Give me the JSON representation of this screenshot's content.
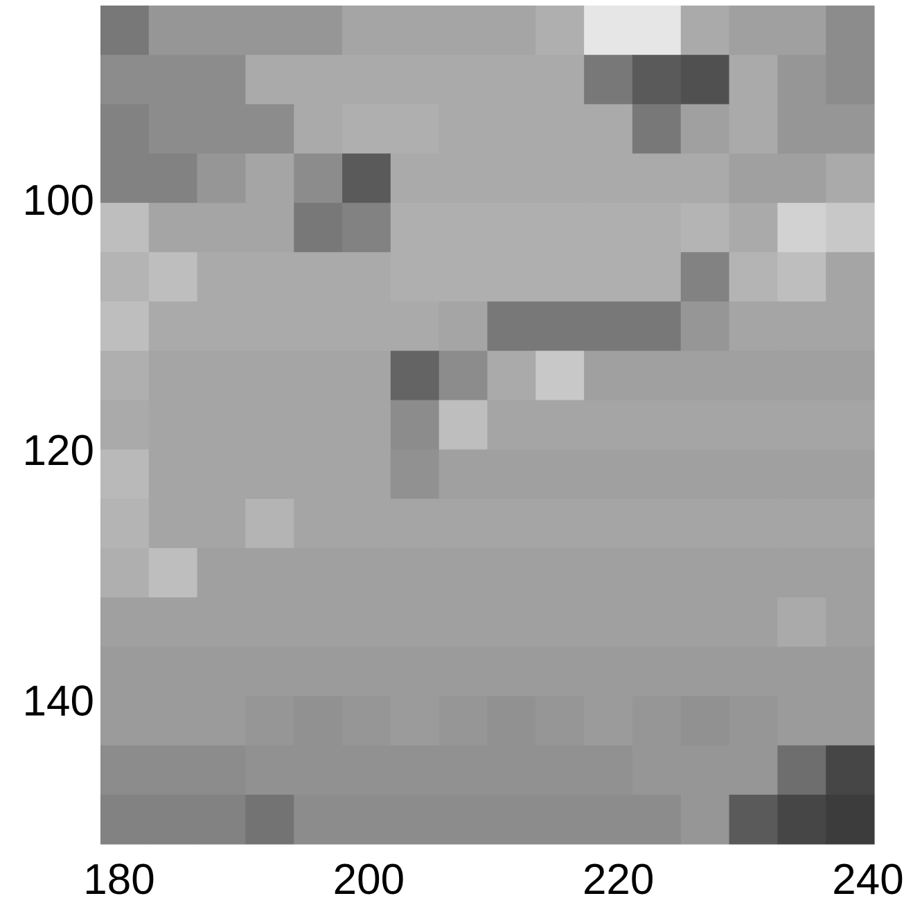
{
  "chart_data": {
    "type": "heatmap",
    "colormap": "gray",
    "vlim": [
      0,
      255
    ],
    "xlim": [
      178.5,
      240.5
    ],
    "ylim": [
      84.5,
      151.5
    ],
    "y_inverted": true,
    "xticks": [
      180,
      200,
      220,
      240
    ],
    "yticks": [
      100,
      120,
      140
    ],
    "values": [
      [
        120,
        150,
        150,
        150,
        150,
        165,
        165,
        165,
        165,
        175,
        230,
        230,
        170,
        160,
        160,
        140
      ],
      [
        140,
        140,
        140,
        170,
        170,
        170,
        170,
        170,
        170,
        170,
        120,
        90,
        80,
        170,
        150,
        140
      ],
      [
        130,
        140,
        140,
        140,
        170,
        175,
        175,
        170,
        170,
        170,
        170,
        120,
        160,
        170,
        150,
        150
      ],
      [
        130,
        130,
        150,
        165,
        140,
        90,
        170,
        170,
        170,
        170,
        170,
        170,
        170,
        160,
        160,
        170
      ],
      [
        190,
        165,
        165,
        165,
        120,
        130,
        175,
        175,
        175,
        175,
        175,
        175,
        180,
        170,
        210,
        200
      ],
      [
        180,
        190,
        170,
        170,
        170,
        170,
        175,
        175,
        175,
        175,
        175,
        175,
        130,
        180,
        190,
        165
      ],
      [
        190,
        170,
        170,
        170,
        170,
        170,
        170,
        165,
        120,
        120,
        120,
        120,
        150,
        165,
        165,
        165
      ],
      [
        175,
        165,
        165,
        165,
        165,
        165,
        100,
        140,
        170,
        200,
        160,
        160,
        160,
        160,
        160,
        160
      ],
      [
        170,
        165,
        165,
        165,
        165,
        165,
        140,
        190,
        165,
        165,
        165,
        165,
        165,
        165,
        165,
        165
      ],
      [
        185,
        165,
        165,
        165,
        165,
        165,
        145,
        160,
        160,
        160,
        160,
        160,
        160,
        160,
        160,
        160
      ],
      [
        180,
        165,
        165,
        180,
        165,
        165,
        165,
        165,
        165,
        165,
        165,
        165,
        165,
        165,
        165,
        165
      ],
      [
        175,
        190,
        160,
        160,
        160,
        160,
        160,
        160,
        160,
        160,
        160,
        160,
        160,
        160,
        160,
        160
      ],
      [
        160,
        160,
        160,
        160,
        160,
        160,
        160,
        160,
        160,
        160,
        160,
        160,
        160,
        160,
        170,
        160
      ],
      [
        155,
        155,
        155,
        155,
        155,
        155,
        155,
        155,
        155,
        155,
        155,
        155,
        155,
        155,
        155,
        155
      ],
      [
        155,
        155,
        155,
        150,
        145,
        150,
        155,
        150,
        145,
        150,
        155,
        150,
        145,
        150,
        155,
        155
      ],
      [
        140,
        140,
        140,
        145,
        145,
        145,
        145,
        145,
        145,
        145,
        145,
        150,
        150,
        150,
        110,
        70
      ],
      [
        130,
        130,
        130,
        115,
        140,
        140,
        140,
        140,
        140,
        140,
        140,
        140,
        150,
        90,
        70,
        60
      ]
    ]
  }
}
